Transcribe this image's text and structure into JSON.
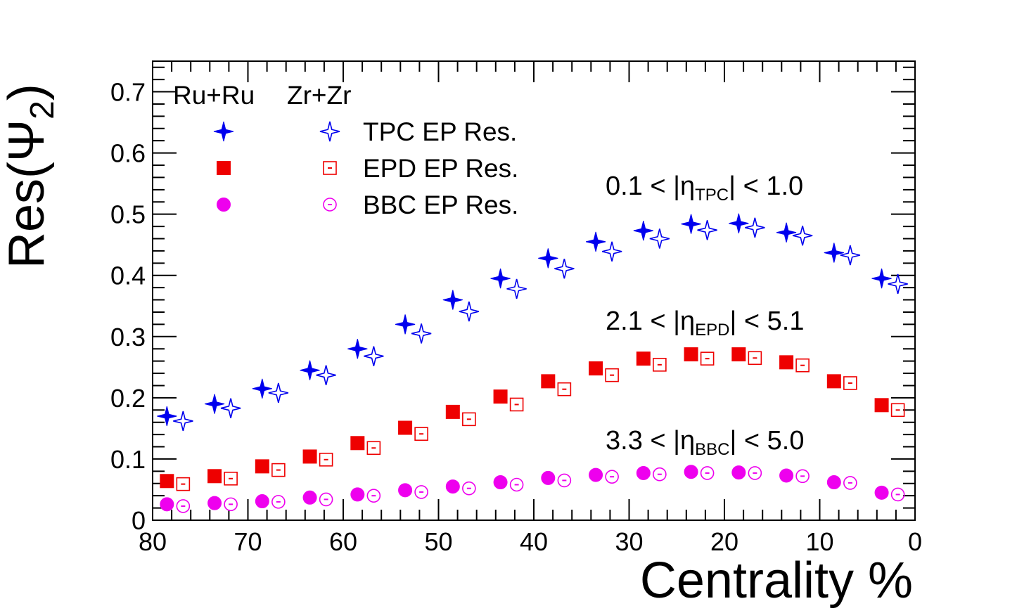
{
  "chart_data": {
    "type": "scatter",
    "xlabel": "Centrality %",
    "ylabel": "Res(Ψ",
    "ylabel_sub": "2",
    "ylabel_close": ")",
    "xlim": [
      80,
      0
    ],
    "ylim": [
      0,
      0.75
    ],
    "x_ticks": [
      "80",
      "70",
      "60",
      "50",
      "40",
      "30",
      "20",
      "10",
      "0"
    ],
    "y_ticks": [
      "0",
      "0.1",
      "0.2",
      "0.3",
      "0.4",
      "0.5",
      "0.6",
      "0.7"
    ],
    "grid": false,
    "legend_headers": {
      "left": "Ru+Ru",
      "right": "Zr+Zr"
    },
    "series": [
      {
        "name": "TPC EP Res.",
        "system": "Ru+Ru",
        "detector": "TPC",
        "marker": "star-filled",
        "color": "#0000ee",
        "x": [
          78.5,
          73.5,
          68.5,
          63.5,
          58.5,
          53.5,
          48.5,
          43.5,
          38.5,
          33.5,
          28.5,
          23.5,
          18.5,
          13.5,
          8.5,
          3.5
        ],
        "y": [
          0.17,
          0.19,
          0.215,
          0.245,
          0.28,
          0.32,
          0.36,
          0.395,
          0.428,
          0.455,
          0.473,
          0.484,
          0.485,
          0.47,
          0.437,
          0.395
        ]
      },
      {
        "name": "",
        "system": "Zr+Zr",
        "detector": "TPC",
        "marker": "star-open",
        "color": "#0000ee",
        "x": [
          76.8,
          71.8,
          66.8,
          61.8,
          56.8,
          51.8,
          46.8,
          41.8,
          36.8,
          31.8,
          26.8,
          21.8,
          16.8,
          11.8,
          6.8,
          1.8
        ],
        "y": [
          0.162,
          0.183,
          0.208,
          0.237,
          0.268,
          0.305,
          0.341,
          0.378,
          0.411,
          0.439,
          0.46,
          0.474,
          0.478,
          0.465,
          0.433,
          0.386
        ]
      },
      {
        "name": "EPD EP Res.",
        "system": "Ru+Ru",
        "detector": "EPD",
        "marker": "square-filled",
        "color": "#ee0000",
        "x": [
          78.5,
          73.5,
          68.5,
          63.5,
          58.5,
          53.5,
          48.5,
          43.5,
          38.5,
          33.5,
          28.5,
          23.5,
          18.5,
          13.5,
          8.5,
          3.5
        ],
        "y": [
          0.064,
          0.072,
          0.088,
          0.104,
          0.126,
          0.151,
          0.177,
          0.202,
          0.227,
          0.248,
          0.264,
          0.271,
          0.271,
          0.258,
          0.227,
          0.188
        ]
      },
      {
        "name": "",
        "system": "Zr+Zr",
        "detector": "EPD",
        "marker": "square-open",
        "color": "#ee0000",
        "x": [
          76.8,
          71.8,
          66.8,
          61.8,
          56.8,
          51.8,
          46.8,
          41.8,
          36.8,
          31.8,
          26.8,
          21.8,
          16.8,
          11.8,
          6.8,
          1.8
        ],
        "y": [
          0.059,
          0.068,
          0.082,
          0.099,
          0.118,
          0.141,
          0.165,
          0.189,
          0.214,
          0.237,
          0.254,
          0.264,
          0.265,
          0.253,
          0.224,
          0.18
        ]
      },
      {
        "name": "BBC EP Res.",
        "system": "Ru+Ru",
        "detector": "BBC",
        "marker": "circle-filled",
        "color": "#ee00ee",
        "x": [
          78.5,
          73.5,
          68.5,
          63.5,
          58.5,
          53.5,
          48.5,
          43.5,
          38.5,
          33.5,
          28.5,
          23.5,
          18.5,
          13.5,
          8.5,
          3.5
        ],
        "y": [
          0.026,
          0.028,
          0.031,
          0.037,
          0.042,
          0.049,
          0.055,
          0.062,
          0.069,
          0.074,
          0.077,
          0.079,
          0.078,
          0.073,
          0.062,
          0.045
        ]
      },
      {
        "name": "",
        "system": "Zr+Zr",
        "detector": "BBC",
        "marker": "circle-open",
        "color": "#ee00ee",
        "x": [
          76.8,
          71.8,
          66.8,
          61.8,
          56.8,
          51.8,
          46.8,
          41.8,
          36.8,
          31.8,
          26.8,
          21.8,
          16.8,
          11.8,
          6.8,
          1.8
        ],
        "y": [
          0.023,
          0.026,
          0.03,
          0.034,
          0.04,
          0.046,
          0.052,
          0.058,
          0.065,
          0.071,
          0.075,
          0.077,
          0.077,
          0.072,
          0.061,
          0.042
        ]
      }
    ],
    "annotations": [
      {
        "prefix": "0.1 < |η",
        "sub": "TPC",
        "suffix": "| < 1.0"
      },
      {
        "prefix": "2.1 < |η",
        "sub": "EPD",
        "suffix": "| < 5.1"
      },
      {
        "prefix": "3.3 < |η",
        "sub": "BBC",
        "suffix": "| < 5.0"
      }
    ]
  }
}
